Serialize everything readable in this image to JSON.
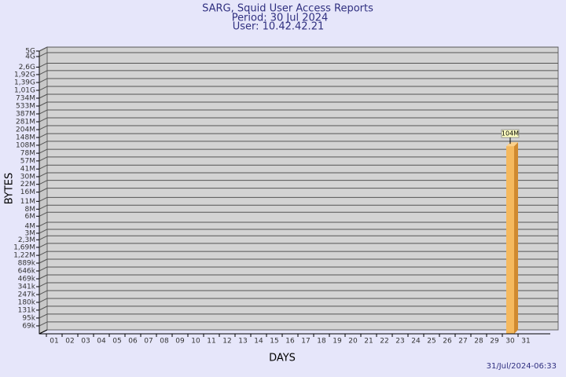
{
  "chart_data": {
    "type": "bar",
    "title": "SARG, Squid User Access Reports",
    "subtitle": [
      "Period: 30 Jul 2024",
      "User: 10.42.42.21"
    ],
    "x_label": "DAYS",
    "y_label": "BYTES",
    "footer": "31/Jul/2024-06:33",
    "categories": [
      "01",
      "02",
      "03",
      "04",
      "05",
      "06",
      "07",
      "08",
      "09",
      "10",
      "11",
      "12",
      "13",
      "14",
      "15",
      "16",
      "17",
      "18",
      "19",
      "20",
      "21",
      "22",
      "23",
      "24",
      "25",
      "26",
      "27",
      "28",
      "29",
      "30",
      "31"
    ],
    "values": [
      null,
      null,
      null,
      null,
      null,
      null,
      null,
      null,
      null,
      null,
      null,
      null,
      null,
      null,
      null,
      null,
      null,
      null,
      null,
      null,
      null,
      null,
      null,
      null,
      null,
      null,
      null,
      null,
      null,
      104000000,
      null
    ],
    "value_labels": [
      null,
      null,
      null,
      null,
      null,
      null,
      null,
      null,
      null,
      null,
      null,
      null,
      null,
      null,
      null,
      null,
      null,
      null,
      null,
      null,
      null,
      null,
      null,
      null,
      null,
      null,
      null,
      null,
      null,
      "104M",
      null
    ],
    "color": "#f5b95e",
    "log_scale": true,
    "grid": true,
    "ylim": [
      50000,
      5000000000
    ],
    "yticks": [
      {
        "value": 5000000000,
        "label": "5G"
      },
      {
        "value": 4000000000,
        "label": "4G"
      },
      {
        "value": 2600000000,
        "label": "2,6G"
      },
      {
        "value": 1920000000,
        "label": "1,92G"
      },
      {
        "value": 1390000000,
        "label": "1,39G"
      },
      {
        "value": 1010000000,
        "label": "1,01G"
      },
      {
        "value": 734000000,
        "label": "734M"
      },
      {
        "value": 533000000,
        "label": "533M"
      },
      {
        "value": 387000000,
        "label": "387M"
      },
      {
        "value": 281000000,
        "label": "281M"
      },
      {
        "value": 204000000,
        "label": "204M"
      },
      {
        "value": 148000000,
        "label": "148M"
      },
      {
        "value": 108000000,
        "label": "108M"
      },
      {
        "value": 78000000,
        "label": "78M"
      },
      {
        "value": 57000000,
        "label": "57M"
      },
      {
        "value": 41000000,
        "label": "41M"
      },
      {
        "value": 30000000,
        "label": "30M"
      },
      {
        "value": 22000000,
        "label": "22M"
      },
      {
        "value": 16000000,
        "label": "16M"
      },
      {
        "value": 11000000,
        "label": "11M"
      },
      {
        "value": 8000000,
        "label": "8M"
      },
      {
        "value": 6000000,
        "label": "6M"
      },
      {
        "value": 4000000,
        "label": "4M"
      },
      {
        "value": 3000000,
        "label": "3M"
      },
      {
        "value": 2300000,
        "label": "2,3M"
      },
      {
        "value": 1690000,
        "label": "1,69M"
      },
      {
        "value": 1220000,
        "label": "1,22M"
      },
      {
        "value": 889000,
        "label": "889k"
      },
      {
        "value": 646000,
        "label": "646k"
      },
      {
        "value": 469000,
        "label": "469k"
      },
      {
        "value": 341000,
        "label": "341k"
      },
      {
        "value": 247000,
        "label": "247k"
      },
      {
        "value": 180000,
        "label": "180k"
      },
      {
        "value": 131000,
        "label": "131k"
      },
      {
        "value": 95000,
        "label": "95k"
      },
      {
        "value": 69000,
        "label": "69k"
      }
    ]
  }
}
